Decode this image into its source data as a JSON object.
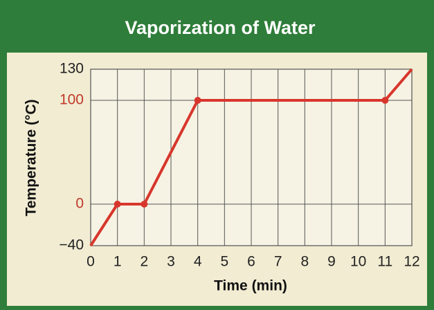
{
  "chart_data": {
    "type": "line",
    "title": "Vaporization of Water",
    "x_label": "Time (min)",
    "y_label": "Temperature (°C)",
    "x": [
      0,
      1,
      2,
      4,
      11,
      12
    ],
    "values": [
      -40,
      0,
      0,
      100,
      100,
      130
    ],
    "color": "#d8362c",
    "xlim": [
      0,
      12
    ],
    "xticks": [
      0,
      1,
      2,
      3,
      4,
      5,
      6,
      7,
      8,
      9,
      10,
      11,
      12
    ],
    "ylim": [
      -40,
      130
    ],
    "yticks": [
      {
        "value": -40,
        "label": "−40"
      },
      0,
      100,
      130
    ],
    "ytick_colors": [
      "#222222",
      "#c0392b",
      "#c0392b",
      "#222222"
    ],
    "grid": true
  }
}
